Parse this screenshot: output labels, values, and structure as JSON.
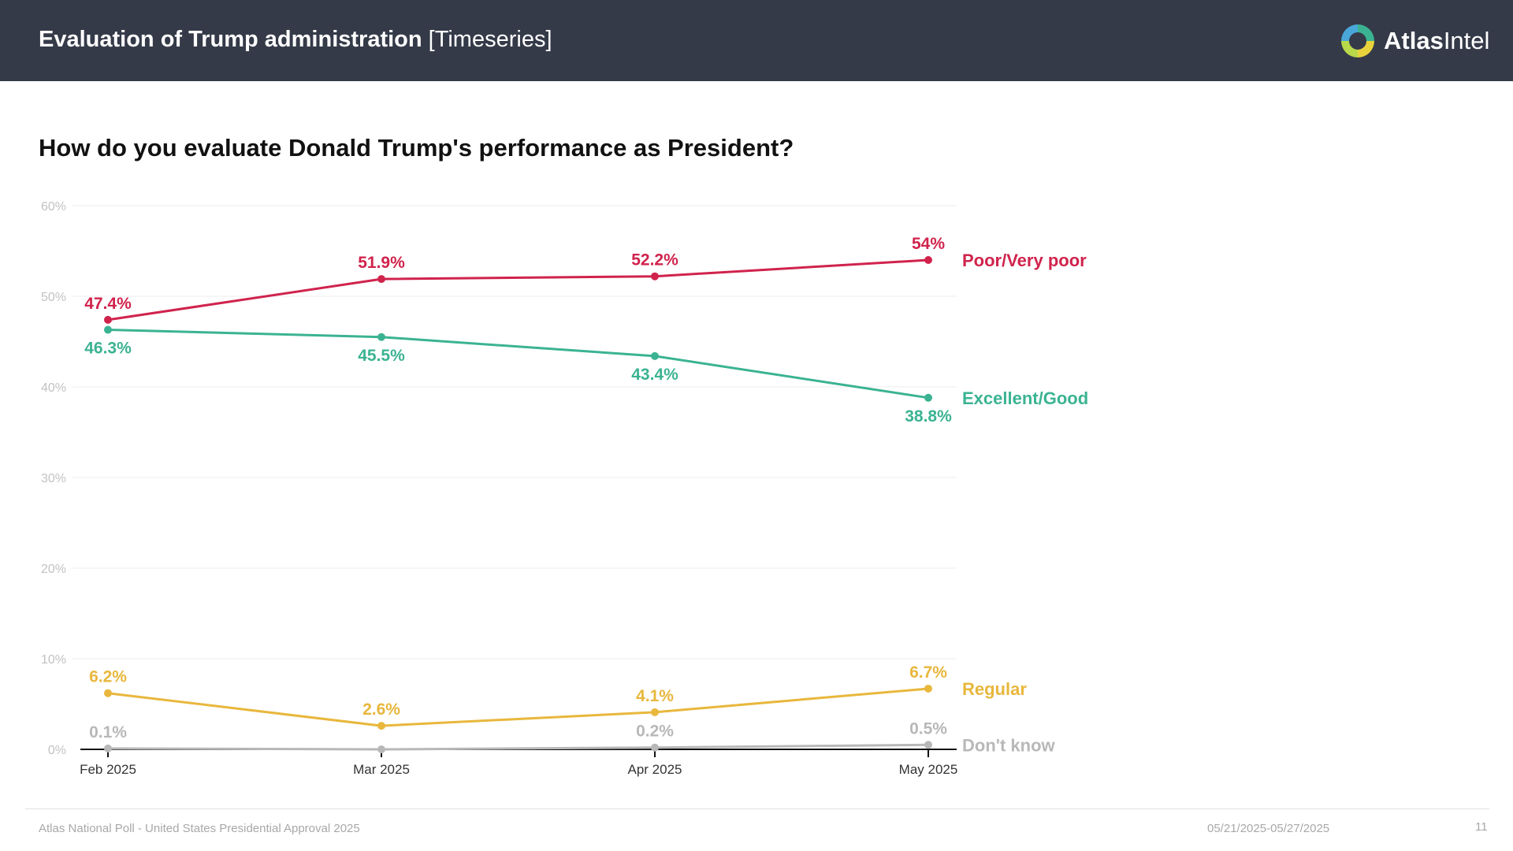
{
  "header": {
    "title_bold": "Evaluation of Trump administration",
    "title_suffix": " [Timeseries]",
    "logo_bold": "Atlas",
    "logo_regular": "Intel",
    "logo_icon": "atlasintel-logo-icon"
  },
  "question": "How do you evaluate Donald Trump's performance as President?",
  "footer": {
    "source": "Atlas National Poll - United States Presidential Approval 2025",
    "date_range": "05/21/2025-05/27/2025",
    "page_number": "11"
  },
  "chart_data": {
    "type": "line",
    "title": "How do you evaluate Donald Trump's performance as President?",
    "categories": [
      "Feb 2025",
      "Mar 2025",
      "Apr 2025",
      "May 2025"
    ],
    "ylim": [
      0,
      60
    ],
    "yticks": [
      "0%",
      "10%",
      "20%",
      "30%",
      "40%",
      "50%",
      "60%"
    ],
    "ytick_values": [
      0,
      10,
      20,
      30,
      40,
      50,
      60
    ],
    "grid": true,
    "legend": "right-end-labels",
    "series": [
      {
        "name": "Poor/Very poor",
        "color": "#d0234c",
        "values": [
          47.4,
          51.9,
          52.2,
          54
        ],
        "labels": [
          "47.4%",
          "51.9%",
          "52.2%",
          "54%"
        ],
        "label_side": [
          "above",
          "above",
          "above",
          "above"
        ]
      },
      {
        "name": "Excellent/Good",
        "color": "#3bb392",
        "values": [
          46.3,
          45.5,
          43.4,
          38.8
        ],
        "labels": [
          "46.3%",
          "45.5%",
          "43.4%",
          "38.8%"
        ],
        "label_side": [
          "below",
          "below",
          "below",
          "below"
        ]
      },
      {
        "name": "Regular",
        "color": "#e8b73c",
        "values": [
          6.2,
          2.6,
          4.1,
          6.7
        ],
        "labels": [
          "6.2%",
          "2.6%",
          "4.1%",
          "6.7%"
        ],
        "label_side": [
          "above",
          "above",
          "above",
          "above"
        ]
      },
      {
        "name": "Don't know",
        "color": "#b8b8b8",
        "values": [
          0.1,
          0,
          0.2,
          0.5
        ],
        "labels": [
          "0.1%",
          "",
          "0.2%",
          "0.5%"
        ],
        "label_side": [
          "above",
          "above",
          "above",
          "above"
        ]
      }
    ]
  }
}
